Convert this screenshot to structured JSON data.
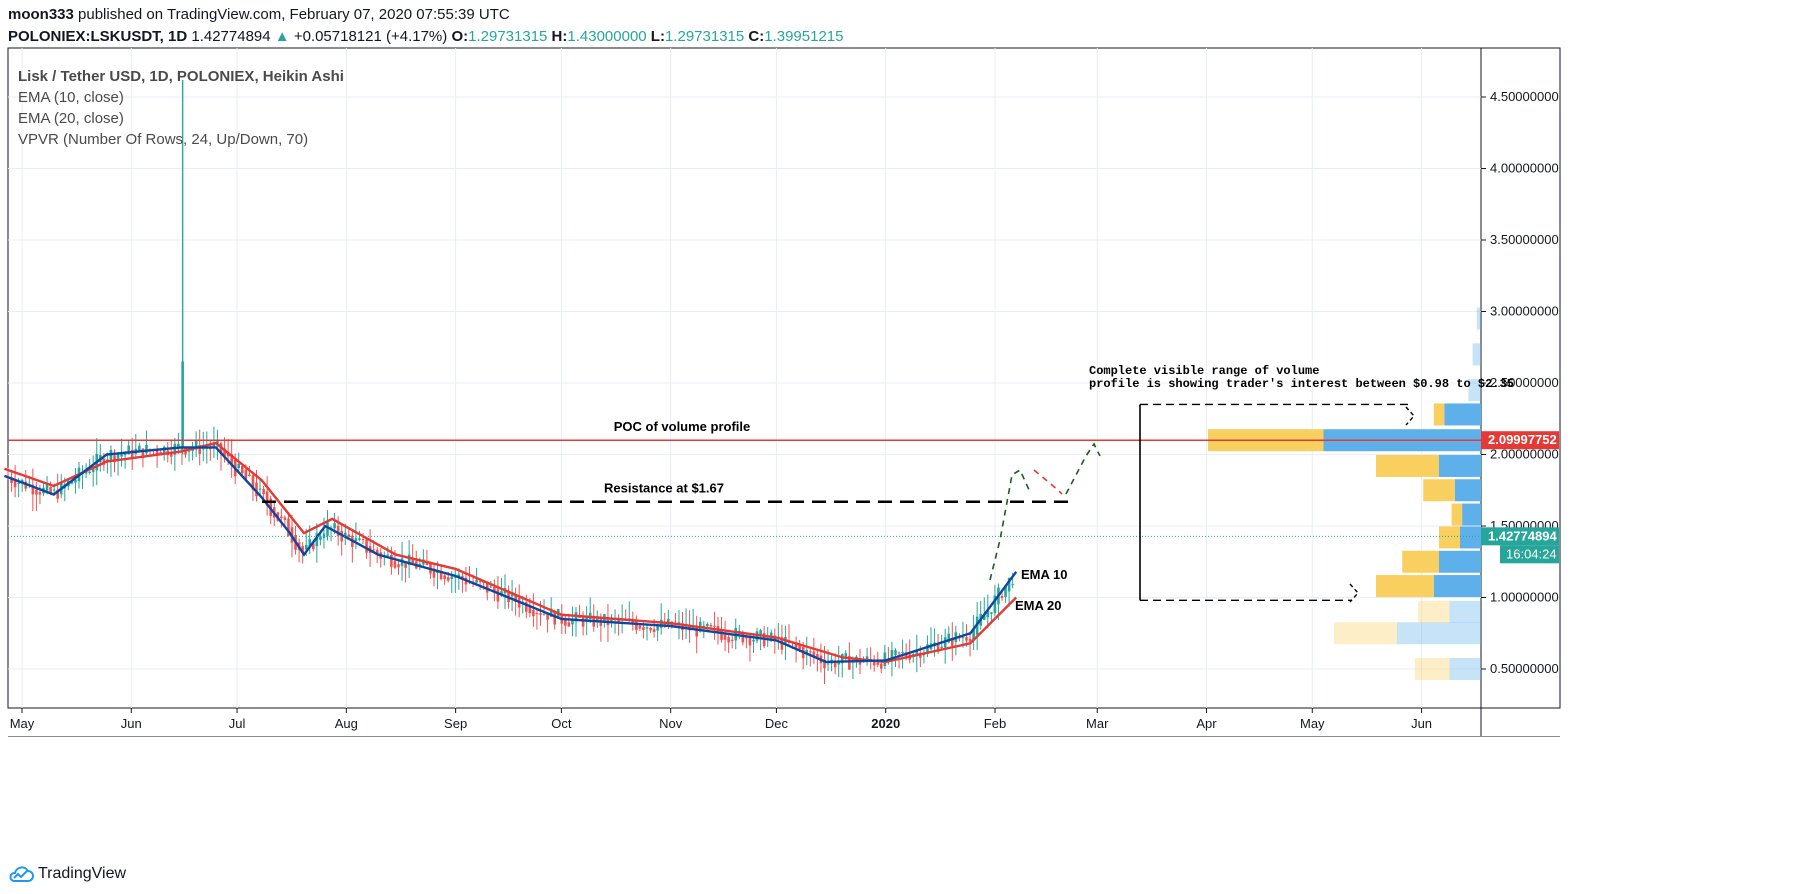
{
  "header": {
    "publisher": "moon333",
    "published_text": "published on TradingView.com, February 07, 2020 07:55:39 UTC",
    "symbol": "POLONIEX:LSKUSDT, 1D",
    "last": "1.42774894",
    "change_arrow": "▲",
    "change": "+0.05718121 (+4.17%)",
    "o_label": "O:",
    "o": "1.29731315",
    "h_label": "H:",
    "h": "1.43000000",
    "l_label": "L:",
    "l": "1.29731315",
    "c_label": "C:",
    "c": "1.39951215"
  },
  "legend": {
    "main": "Lisk / Tether USD, 1D, POLONIEX, Heikin Ashi",
    "ema10": "EMA (10, close)",
    "ema20": "EMA (20, close)",
    "vpvr": "VPVR (Number Of Rows, 24, Up/Down, 70)"
  },
  "annotations": {
    "poc": "POC of volume profile",
    "resistance": "Resistance at $1.67",
    "ema10": "EMA 10",
    "ema20": "EMA 20",
    "range_line1": "Complete visible range of volume",
    "range_line2": "profile is showing trader's interest between $0.98 to $2.35"
  },
  "price_labels": {
    "poc": "2.09997752",
    "last": "1.42774894",
    "countdown": "16:04:24"
  },
  "footer": {
    "brand": "TradingView"
  },
  "colors": {
    "up": "#26a69a",
    "down": "#ef5350",
    "ema10": "#0d47a1",
    "ema20": "#e53935",
    "poc_line": "#e53935",
    "vp_up": "#5eb0ea",
    "vp_down": "#f9cf5f",
    "grid": "#e8eef4"
  },
  "chart_data": {
    "type": "candlestick",
    "title": "Lisk / Tether USD, 1D, POLONIEX, Heikin Ashi",
    "y_ticks": [
      "0.50000000",
      "1.00000000",
      "1.50000000",
      "2.00000000",
      "2.50000000",
      "3.00000000",
      "3.50000000",
      "4.00000000",
      "4.50000000"
    ],
    "ylim": [
      0.35,
      4.8
    ],
    "x_ticks": [
      "May",
      "Jun",
      "Jul",
      "Aug",
      "Sep",
      "Oct",
      "Nov",
      "Dec",
      "2020",
      "Feb",
      "Mar",
      "Apr",
      "May",
      "Jun"
    ],
    "ema10_key_points": [
      [
        "2019-04-26",
        1.85
      ],
      [
        "2019-05-10",
        1.72
      ],
      [
        "2019-05-25",
        2.0
      ],
      [
        "2019-06-15",
        2.05
      ],
      [
        "2019-06-25",
        2.05
      ],
      [
        "2019-07-08",
        1.7
      ],
      [
        "2019-07-16",
        1.45
      ],
      [
        "2019-07-20",
        1.3
      ],
      [
        "2019-07-26",
        1.5
      ],
      [
        "2019-08-10",
        1.3
      ],
      [
        "2019-09-01",
        1.15
      ],
      [
        "2019-10-01",
        0.85
      ],
      [
        "2019-11-01",
        0.8
      ],
      [
        "2019-12-01",
        0.7
      ],
      [
        "2019-12-15",
        0.55
      ],
      [
        "2020-01-01",
        0.56
      ],
      [
        "2020-01-25",
        0.75
      ],
      [
        "2020-02-07",
        1.18
      ]
    ],
    "ema20_key_points": [
      [
        "2019-04-26",
        1.9
      ],
      [
        "2019-05-10",
        1.78
      ],
      [
        "2019-05-25",
        1.95
      ],
      [
        "2019-06-15",
        2.02
      ],
      [
        "2019-06-25",
        2.08
      ],
      [
        "2019-07-08",
        1.82
      ],
      [
        "2019-07-20",
        1.45
      ],
      [
        "2019-07-28",
        1.55
      ],
      [
        "2019-08-15",
        1.3
      ],
      [
        "2019-09-01",
        1.2
      ],
      [
        "2019-10-01",
        0.88
      ],
      [
        "2019-11-01",
        0.82
      ],
      [
        "2019-12-01",
        0.72
      ],
      [
        "2019-12-20",
        0.58
      ],
      [
        "2020-01-01",
        0.55
      ],
      [
        "2020-01-25",
        0.68
      ],
      [
        "2020-02-07",
        1.0
      ]
    ],
    "spike_high": 4.62,
    "poc_price": 2.09997752,
    "resistance": 1.67,
    "last_price": 1.42774894,
    "volume_profile": [
      {
        "price": 0.5,
        "up": 30,
        "down": 33,
        "faded": true
      },
      {
        "price": 0.75,
        "up": 80,
        "down": 60,
        "faded": true
      },
      {
        "price": 0.9,
        "up": 30,
        "down": 30,
        "faded": true
      },
      {
        "price": 1.08,
        "up": 45,
        "down": 55
      },
      {
        "price": 1.25,
        "up": 40,
        "down": 35
      },
      {
        "price": 1.42,
        "up": 20,
        "down": 20
      },
      {
        "price": 1.58,
        "up": 18,
        "down": 10
      },
      {
        "price": 1.75,
        "up": 25,
        "down": 30
      },
      {
        "price": 1.92,
        "up": 40,
        "down": 60
      },
      {
        "price": 2.1,
        "up": 150,
        "down": 110
      },
      {
        "price": 2.28,
        "up": 35,
        "down": 10
      },
      {
        "price": 2.45,
        "up": 12,
        "down": 0,
        "faded": true
      },
      {
        "price": 2.7,
        "up": 8,
        "down": 0,
        "faded": true
      },
      {
        "price": 2.95,
        "up": 4,
        "down": 0,
        "faded": true
      }
    ]
  }
}
